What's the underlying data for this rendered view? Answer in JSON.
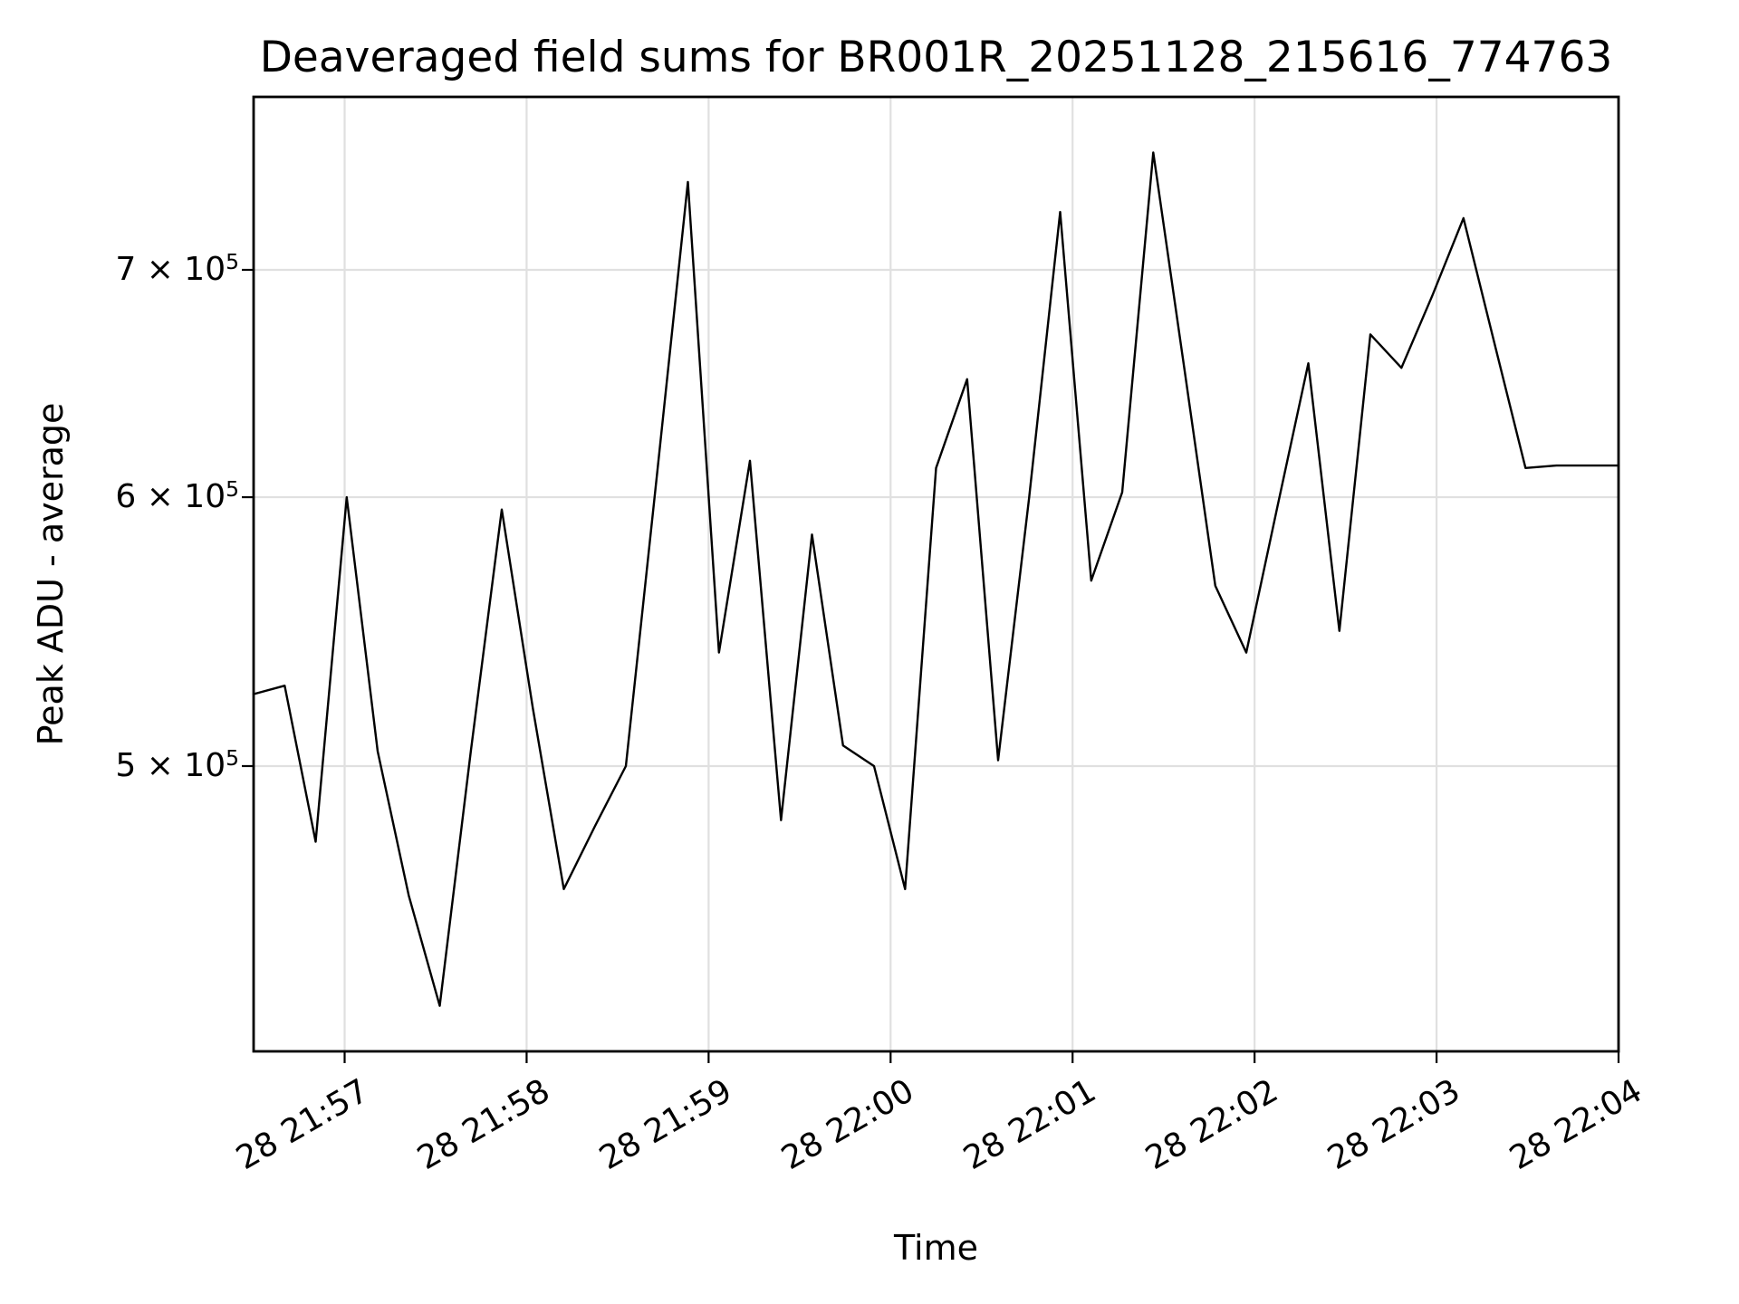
{
  "chart_data": {
    "type": "line",
    "title": "Deaveraged field sums for BR001R_20251128_215616_774763",
    "xlabel": "Time",
    "ylabel": "Peak ADU - average",
    "legend": "none",
    "grid": "on",
    "grid_color": "#e0e0e0",
    "line_color": "#000000",
    "background_color": "#ffffff",
    "y_scale": "log",
    "y_range_approx": [
      412000,
      787000
    ],
    "x_range_approx": [
      "28 21:56:30",
      "28 22:04:00"
    ],
    "x_tick_labels": [
      "28 21:57",
      "28 21:58",
      "28 21:59",
      "28 22:00",
      "28 22:01",
      "28 22:02",
      "28 22:03",
      "28 22:04"
    ],
    "y_ticks": [
      {
        "value": 700000,
        "label": "7 × 10",
        "exp": "5"
      },
      {
        "value": 600000,
        "label": "6 × 10",
        "exp": "5"
      },
      {
        "value": 500000,
        "label": "5 × 10",
        "exp": "5"
      }
    ],
    "series": [
      {
        "name": "deaveraged field sum",
        "points": [
          {
            "t": "21:56:30",
            "v": 525000
          },
          {
            "t": "21:56:40",
            "v": 528000
          },
          {
            "t": "21:56:50",
            "v": 475000
          },
          {
            "t": "21:57:00",
            "v": 600000
          },
          {
            "t": "21:57:10",
            "v": 505000
          },
          {
            "t": "21:57:20",
            "v": 458000
          },
          {
            "t": "21:57:30",
            "v": 425000
          },
          {
            "t": "21:57:40",
            "v": 505000
          },
          {
            "t": "21:57:50",
            "v": 595000
          },
          {
            "t": "21:58:00",
            "v": 520000
          },
          {
            "t": "21:58:10",
            "v": 460000
          },
          {
            "t": "21:58:20",
            "v": 480000
          },
          {
            "t": "21:58:30",
            "v": 500000
          },
          {
            "t": "21:58:40",
            "v": 609000
          },
          {
            "t": "21:58:50",
            "v": 743000
          },
          {
            "t": "21:59:00",
            "v": 540000
          },
          {
            "t": "21:59:10",
            "v": 615000
          },
          {
            "t": "21:59:20",
            "v": 482000
          },
          {
            "t": "21:59:30",
            "v": 585000
          },
          {
            "t": "21:59:40",
            "v": 507000
          },
          {
            "t": "21:59:50",
            "v": 500000
          },
          {
            "t": "22:00:00",
            "v": 460000
          },
          {
            "t": "22:00:10",
            "v": 612000
          },
          {
            "t": "22:00:20",
            "v": 650000
          },
          {
            "t": "22:00:30",
            "v": 502000
          },
          {
            "t": "22:00:40",
            "v": 600000
          },
          {
            "t": "22:00:50",
            "v": 728000
          },
          {
            "t": "22:01:00",
            "v": 567000
          },
          {
            "t": "22:01:10",
            "v": 602000
          },
          {
            "t": "22:01:20",
            "v": 758000
          },
          {
            "t": "22:01:30",
            "v": 655000
          },
          {
            "t": "22:01:40",
            "v": 565000
          },
          {
            "t": "22:01:50",
            "v": 540000
          },
          {
            "t": "22:02:00",
            "v": 596000
          },
          {
            "t": "22:02:10",
            "v": 657000
          },
          {
            "t": "22:02:20",
            "v": 548000
          },
          {
            "t": "22:02:30",
            "v": 670000
          },
          {
            "t": "22:02:40",
            "v": 655000
          },
          {
            "t": "22:02:50",
            "v": 688000
          },
          {
            "t": "22:03:00",
            "v": 725000
          },
          {
            "t": "22:03:10",
            "v": 666000
          },
          {
            "t": "22:03:20",
            "v": 612000
          },
          {
            "t": "22:03:30",
            "v": 613000
          },
          {
            "t": "22:03:40",
            "v": 613000
          },
          {
            "t": "22:03:50",
            "v": 613000
          }
        ]
      }
    ]
  }
}
